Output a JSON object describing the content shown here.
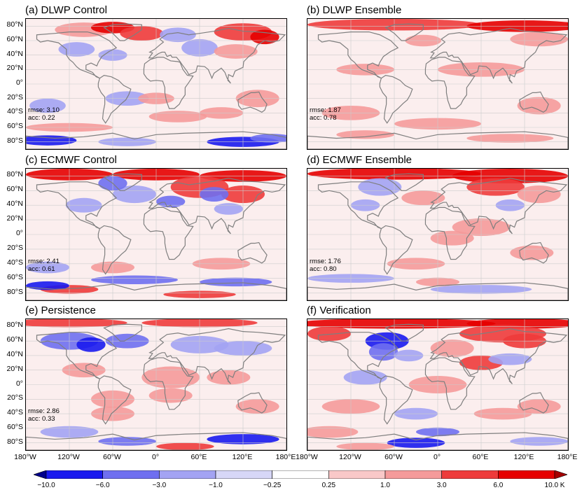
{
  "panels": [
    {
      "id": "a",
      "title": "(a) DLWP Control",
      "rmse": "rmse: 3.10",
      "acc": "acc: 0.22",
      "left": true
    },
    {
      "id": "b",
      "title": "(b) DLWP Ensemble",
      "rmse": "rmse: 1.87",
      "acc": "acc: 0.78",
      "left": false
    },
    {
      "id": "c",
      "title": "(c) ECMWF Control",
      "rmse": "rmse: 2.41",
      "acc": "acc: 0.61",
      "left": true
    },
    {
      "id": "d",
      "title": "(d) ECMWF Ensemble",
      "rmse": "rmse: 1.76",
      "acc": "acc: 0.80",
      "left": false
    },
    {
      "id": "e",
      "title": "(e) Persistence",
      "rmse": "rmse: 2.86",
      "acc": "acc: 0.33",
      "left": true
    },
    {
      "id": "f",
      "title": "(f) Verification",
      "rmse": "",
      "acc": "",
      "left": false
    }
  ],
  "lat_ticks": [
    "80°N",
    "60°N",
    "40°N",
    "20°N",
    "0°",
    "20°S",
    "40°S",
    "60°S",
    "80°S"
  ],
  "lon_ticks": [
    "180°W",
    "120°W",
    "60°W",
    "0°",
    "60°E",
    "120°E",
    "180°E"
  ],
  "colorbar": {
    "levels": [
      "−10.0",
      "−6.0",
      "−3.0",
      "−1.0",
      "−0.25",
      "0.25",
      "1.0",
      "3.0",
      "6.0",
      "10.0 K"
    ],
    "colors": [
      "#00008b",
      "#1a1aee",
      "#6f6ff0",
      "#a3a3f3",
      "#d7d7f7",
      "#ffffff",
      "#f9c8c8",
      "#f59a9a",
      "#ee3b3b",
      "#e60000",
      "#a50000"
    ]
  },
  "chart_data": {
    "type": "heatmap",
    "xlim": [
      -180,
      180
    ],
    "ylim": [
      -90,
      90
    ],
    "units": "K",
    "scores": [
      {
        "panel": "(a) DLWP Control",
        "rmse": 3.1,
        "acc": 0.22
      },
      {
        "panel": "(b) DLWP Ensemble",
        "rmse": 1.87,
        "acc": 0.78
      },
      {
        "panel": "(c) ECMWF Control",
        "rmse": 2.41,
        "acc": 0.61
      },
      {
        "panel": "(d) ECMWF Ensemble",
        "rmse": 1.76,
        "acc": 0.8
      },
      {
        "panel": "(e) Persistence",
        "rmse": 2.86,
        "acc": 0.33
      }
    ]
  }
}
